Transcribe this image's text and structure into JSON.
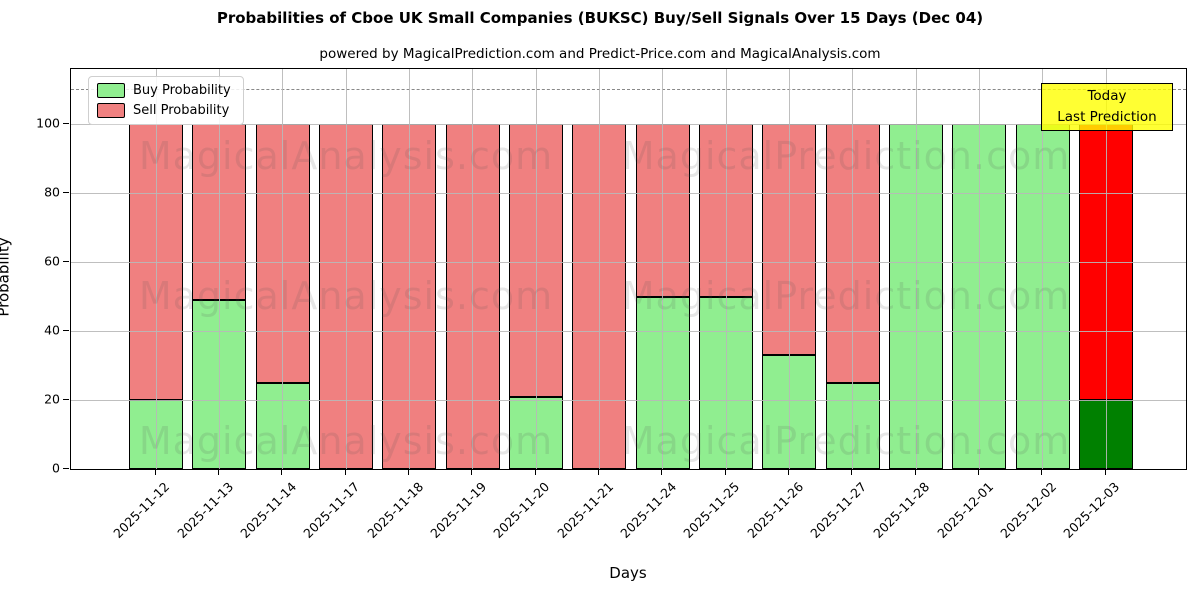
{
  "figure": {
    "title": "Probabilities of Cboe UK Small Companies (BUKSC) Buy/Sell Signals Over 15 Days (Dec 04)",
    "subtitle": "powered by MagicalPrediction.com and Predict-Price.com and MagicalAnalysis.com"
  },
  "chart_data": {
    "type": "bar",
    "stacked": true,
    "title": "Probabilities of Cboe UK Small Companies (BUKSC) Buy/Sell Signals Over 15 Days (Dec 04)",
    "xlabel": "Days",
    "ylabel": "Probability",
    "categories": [
      "2025-11-12",
      "2025-11-13",
      "2025-11-14",
      "2025-11-17",
      "2025-11-18",
      "2025-11-19",
      "2025-11-20",
      "2025-11-21",
      "2025-11-24",
      "2025-11-25",
      "2025-11-26",
      "2025-11-27",
      "2025-11-28",
      "2025-12-01",
      "2025-12-02",
      "2025-12-03"
    ],
    "series": [
      {
        "name": "Buy Probability",
        "color": "#90EE90",
        "today_color": "#008000",
        "values": [
          20,
          49,
          25,
          0,
          0,
          0,
          21,
          0,
          50,
          50,
          33,
          25,
          100,
          100,
          100,
          20
        ]
      },
      {
        "name": "Sell Probability",
        "color": "#F08080",
        "today_color": "#FF0000",
        "values": [
          80,
          51,
          75,
          100,
          100,
          100,
          79,
          100,
          50,
          50,
          67,
          75,
          0,
          0,
          0,
          80
        ]
      }
    ],
    "today_index": 15,
    "yticks": [
      0,
      20,
      40,
      60,
      80,
      100
    ],
    "ylim": [
      0,
      116
    ],
    "grid": true,
    "dashed_line_y": 110,
    "legend_position": "upper-left",
    "bar_edge_color": "#000000"
  },
  "legend": {
    "items": [
      {
        "label": "Buy Probability",
        "color": "#90EE90"
      },
      {
        "label": "Sell Probability",
        "color": "#F08080"
      }
    ]
  },
  "annotation": {
    "line1": "Today",
    "line2": "Last Prediction",
    "bg": "#FFFF00"
  },
  "watermarks": {
    "left": "MagicalAnalysis.com",
    "right": "MagicalPrediction.com"
  }
}
